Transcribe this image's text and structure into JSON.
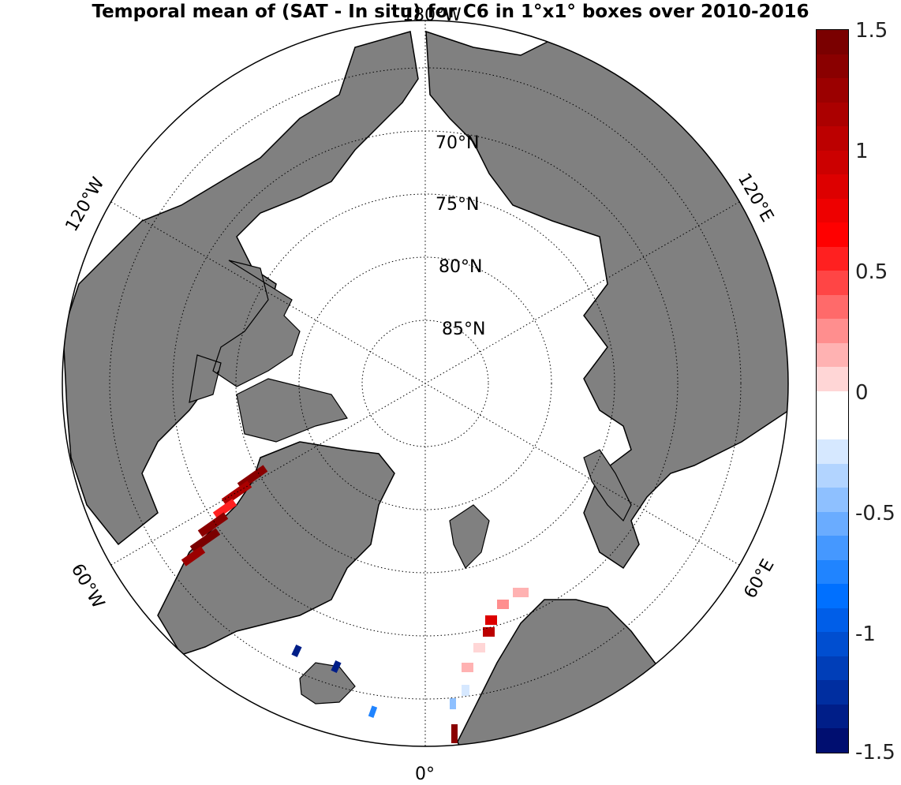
{
  "title": "Temporal mean of (SAT - In situ) for C6 in 1°x1° boxes over 2010-2016",
  "lon_labels": {
    "top": "180°W",
    "bottom": "0°",
    "upper_left": "120°W",
    "upper_right": "120°E",
    "lower_left": "60°W",
    "lower_right": "60°E"
  },
  "lat_labels": [
    "70°N",
    "75°N",
    "80°N",
    "85°N"
  ],
  "colorbar": {
    "min": -1.5,
    "max": 1.5,
    "ticks": [
      "1.5",
      "1",
      "0.5",
      "0",
      "-0.5",
      "-1",
      "-1.5"
    ],
    "colors": [
      "#7a0000",
      "#8a0000",
      "#9b0000",
      "#ab0000",
      "#bc0000",
      "#cc0000",
      "#dd0000",
      "#ee0000",
      "#ff0000",
      "#ff2020",
      "#ff4545",
      "#ff6a6a",
      "#ff8e8e",
      "#ffb2b2",
      "#ffd6d6",
      "#ffffff",
      "#ffffff",
      "#d6e8ff",
      "#b2d4ff",
      "#8ec0ff",
      "#6aacff",
      "#4598ff",
      "#2084ff",
      "#0070ff",
      "#005ee8",
      "#004ed0",
      "#003eb8",
      "#002ea0",
      "#001e88",
      "#000e70"
    ]
  },
  "land_color": "#808080",
  "ocean_color": "#ffffff"
}
